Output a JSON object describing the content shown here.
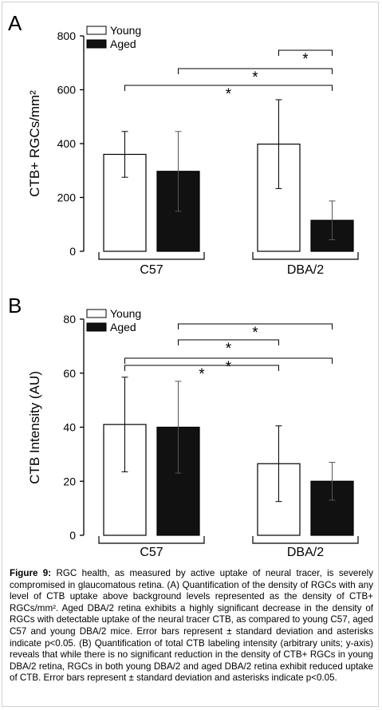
{
  "chart_data": [
    {
      "panel": "A",
      "type": "bar",
      "ylabel": "CTB+ RGCs/mm²",
      "ylim": [
        0,
        800
      ],
      "yticks": [
        0,
        200,
        400,
        600,
        800
      ],
      "groups": [
        "C57",
        "DBA/2"
      ],
      "legend": [
        "Young",
        "Aged"
      ],
      "legend_position": "top-left",
      "colors": {
        "Young": "#ffffff",
        "Aged": "#111111"
      },
      "series": [
        {
          "name": "Young",
          "values": [
            360,
            398
          ],
          "errors": [
            85,
            165
          ]
        },
        {
          "name": "Aged",
          "values": [
            297,
            115
          ],
          "errors": [
            148,
            72
          ]
        }
      ],
      "significance": [
        {
          "from": "DBA/2 Young",
          "to": "DBA/2 Aged",
          "label": "*"
        },
        {
          "from": "C57 Aged",
          "to": "DBA/2 Aged",
          "label": "*"
        },
        {
          "from": "C57 Young",
          "to": "DBA/2 Aged",
          "label": "*"
        }
      ]
    },
    {
      "panel": "B",
      "type": "bar",
      "ylabel": "CTB Intensity (AU)",
      "ylim": [
        0,
        80
      ],
      "yticks": [
        0,
        20,
        40,
        60,
        80
      ],
      "groups": [
        "C57",
        "DBA/2"
      ],
      "legend": [
        "Young",
        "Aged"
      ],
      "legend_position": "top-left",
      "colors": {
        "Young": "#ffffff",
        "Aged": "#111111"
      },
      "series": [
        {
          "name": "Young",
          "values": [
            41,
            26.5
          ],
          "errors": [
            17.5,
            14
          ]
        },
        {
          "name": "Aged",
          "values": [
            40,
            20
          ],
          "errors": [
            17,
            7
          ]
        }
      ],
      "significance": [
        {
          "from": "C57 Aged",
          "to": "DBA/2 Aged",
          "label": "*"
        },
        {
          "from": "C57 Aged",
          "to": "DBA/2 Young",
          "label": "*"
        },
        {
          "from": "C57 Young",
          "to": "DBA/2 Aged",
          "label": "*"
        },
        {
          "from": "C57 Young",
          "to": "DBA/2 Young",
          "label": "*"
        }
      ]
    }
  ],
  "caption": {
    "label": "Figure 9:",
    "text": " RGC health, as measured by active uptake of neural tracer, is severely compromised in glaucomatous retina. (A) Quantification of the density of RGCs with any level of CTB uptake above background levels represented as the density of CTB+ RGCs/mm². Aged DBA/2 retina exhibits a highly significant decrease in the density of RGCs with detectable uptake of the neural tracer CTB, as compared to young C57, aged C57 and young DBA/2 mice. Error bars represent ± standard deviation and asterisks indicate p<0.05. (B) Quantification of total CTB labeling intensity (arbitrary units; y-axis) reveals that while there is no significant reduction in the density of CTB+ RGCs in young DBA/2 retina, RGCs in both young DBA/2 and aged DBA/2 retina exhibit reduced uptake of CTB. Error bars represent ± standard deviation and asterisks indicate p<0.05."
  }
}
